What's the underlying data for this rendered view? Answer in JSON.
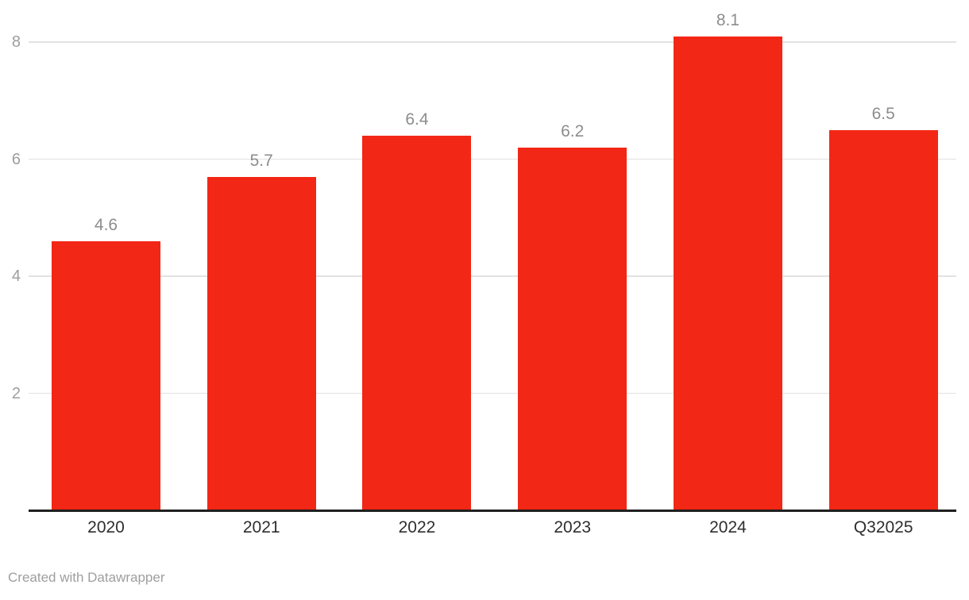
{
  "chart_data": {
    "type": "bar",
    "title": "",
    "xlabel": "",
    "ylabel": "",
    "categories": [
      "2020",
      "2021",
      "2022",
      "2023",
      "2024",
      "Q32025"
    ],
    "values": [
      4.6,
      5.7,
      6.4,
      6.2,
      8.1,
      6.5
    ],
    "value_labels": [
      "4.6",
      "5.7",
      "6.4",
      "6.2",
      "8.1",
      "6.5"
    ],
    "y_ticks": [
      2,
      4,
      6,
      8
    ],
    "ylim": [
      0,
      8.7
    ],
    "grid": true,
    "legend_position": "none",
    "colors": {
      "bar": "#f32715",
      "gridline": "#e2e2e2",
      "axis_line": "#1f1f1f",
      "y_tick_label": "#9e9e9e",
      "value_label": "#8d8d8d",
      "x_tick_label": "#2e2e2e",
      "background": "#ffffff"
    }
  },
  "footer": {
    "attribution": "Created with Datawrapper"
  }
}
